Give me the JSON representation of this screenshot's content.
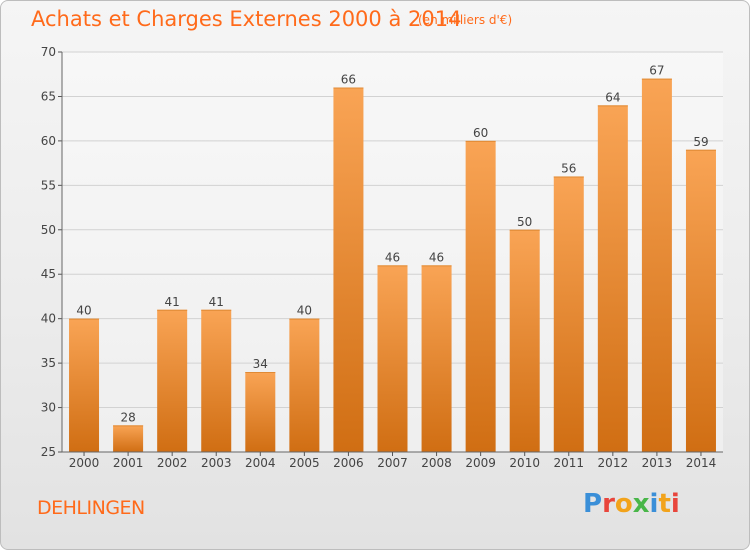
{
  "header": {
    "title": "Achats et Charges Externes 2000 à 2014",
    "subtitle": "(en milliers d'€)"
  },
  "footer": {
    "commune": "DEHLINGEN",
    "logo_text": "Proxiti"
  },
  "colors": {
    "accent": "#ff6a1a",
    "bar_top": "#f9a455",
    "bar_bottom": "#d06e13"
  },
  "chart_data": {
    "type": "bar",
    "title": "Achats et Charges Externes 2000 à 2014",
    "subtitle": "(en milliers d'€)",
    "categories": [
      "2000",
      "2001",
      "2002",
      "2003",
      "2004",
      "2005",
      "2006",
      "2007",
      "2008",
      "2009",
      "2010",
      "2011",
      "2012",
      "2013",
      "2014"
    ],
    "values": [
      40,
      28,
      41,
      41,
      34,
      40,
      66,
      46,
      46,
      60,
      50,
      56,
      64,
      67,
      59
    ],
    "ylim": [
      25,
      70
    ],
    "yticks": [
      25,
      30,
      35,
      40,
      45,
      50,
      55,
      60,
      65,
      70
    ],
    "grid": true,
    "xlabel": "",
    "ylabel": ""
  }
}
